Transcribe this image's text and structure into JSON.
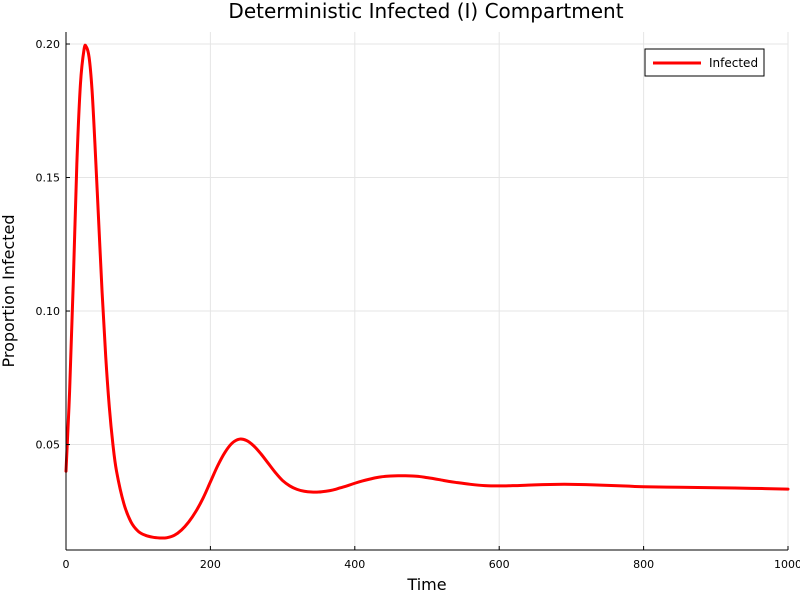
{
  "chart_data": {
    "type": "line",
    "title": "Deterministic Infected (I) Compartment",
    "xlabel": "Time",
    "ylabel": "Proportion Infected",
    "xlim": [
      0,
      1000
    ],
    "ylim": [
      0.0105,
      0.2045
    ],
    "xticks": [
      0,
      200,
      400,
      600,
      800,
      1000
    ],
    "xtick_labels": [
      "0",
      "200",
      "400",
      "600",
      "800",
      "1000"
    ],
    "yticks": [
      0.05,
      0.1,
      0.15,
      0.2
    ],
    "ytick_labels": [
      "0.05",
      "0.10",
      "0.15",
      "0.20"
    ],
    "grid": true,
    "legend_position": "top-right",
    "series": [
      {
        "name": "Infected",
        "color": "#ff0000",
        "x": [
          0,
          5,
          10,
          15,
          20,
          25,
          28,
          32,
          36,
          40,
          45,
          50,
          55,
          60,
          65,
          70,
          80,
          90,
          100,
          110,
          120,
          130,
          135,
          140,
          150,
          160,
          170,
          180,
          190,
          200,
          210,
          220,
          230,
          240,
          250,
          260,
          270,
          280,
          290,
          300,
          310,
          320,
          330,
          340,
          350,
          360,
          370,
          380,
          390,
          400,
          410,
          420,
          430,
          440,
          450,
          460,
          470,
          480,
          490,
          500,
          510,
          520,
          530,
          540,
          560,
          580,
          600,
          620,
          640,
          660,
          680,
          700,
          720,
          740,
          760,
          780,
          800,
          850,
          900,
          950,
          1000
        ],
        "y": [
          0.04,
          0.07,
          0.11,
          0.155,
          0.185,
          0.198,
          0.199,
          0.195,
          0.183,
          0.163,
          0.135,
          0.107,
          0.083,
          0.064,
          0.05,
          0.04,
          0.028,
          0.021,
          0.0175,
          0.016,
          0.0153,
          0.015,
          0.015,
          0.0151,
          0.016,
          0.018,
          0.021,
          0.025,
          0.03,
          0.036,
          0.042,
          0.047,
          0.0505,
          0.052,
          0.0515,
          0.0495,
          0.0465,
          0.043,
          0.0395,
          0.0365,
          0.0345,
          0.0332,
          0.0325,
          0.0322,
          0.0322,
          0.0325,
          0.033,
          0.0338,
          0.0346,
          0.0355,
          0.0363,
          0.037,
          0.0376,
          0.038,
          0.0382,
          0.0383,
          0.0383,
          0.0382,
          0.038,
          0.0376,
          0.0372,
          0.0367,
          0.0362,
          0.0358,
          0.0351,
          0.0346,
          0.0345,
          0.0346,
          0.0348,
          0.035,
          0.0351,
          0.0351,
          0.035,
          0.0348,
          0.0346,
          0.0344,
          0.0342,
          0.034,
          0.0338,
          0.0336,
          0.0333
        ]
      }
    ]
  }
}
